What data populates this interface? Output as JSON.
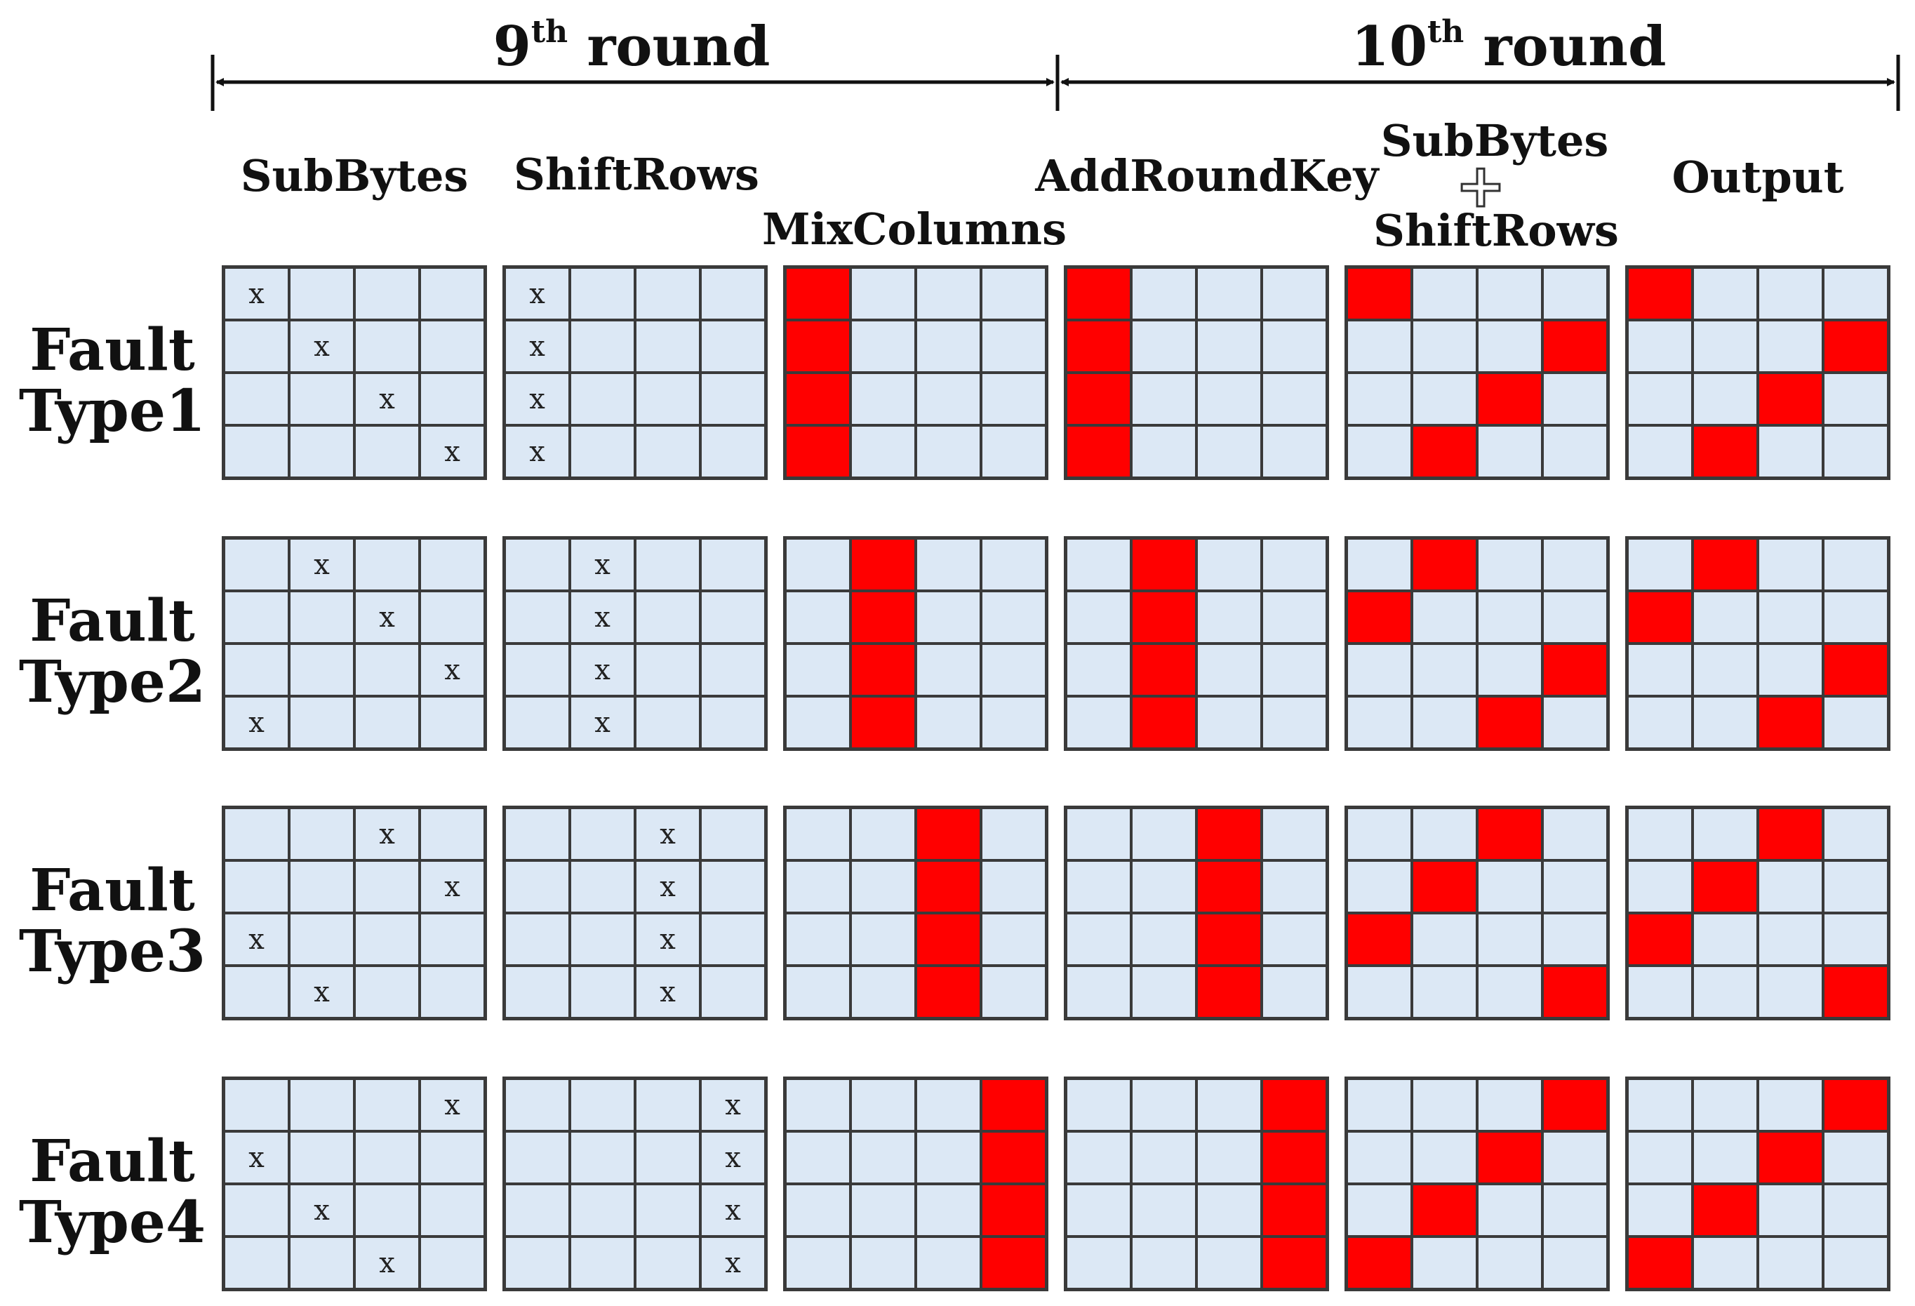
{
  "rounds": [
    {
      "ordinal": "9",
      "suffix": "th",
      "word": "round"
    },
    {
      "ordinal": "10",
      "suffix": "th",
      "word": "round"
    }
  ],
  "column_labels": {
    "subbytes": "SubBytes",
    "shiftrows": "ShiftRows",
    "mixcolumns": "MixColumns",
    "addroundkey": "AddRoundKey",
    "final_subbytes": "SubBytes",
    "final_plus": "+",
    "final_shiftrows": "ShiftRows",
    "output": "Output"
  },
  "fault_types": [
    {
      "label_top": "Fault",
      "label_bottom": "Type1",
      "subbytes_x": [
        [
          0,
          0
        ],
        [
          1,
          1
        ],
        [
          2,
          2
        ],
        [
          3,
          3
        ]
      ],
      "shiftrows_x": [
        [
          0,
          0
        ],
        [
          1,
          0
        ],
        [
          2,
          0
        ],
        [
          3,
          0
        ]
      ],
      "mixcolumns_red": [
        [
          0,
          0
        ],
        [
          1,
          0
        ],
        [
          2,
          0
        ],
        [
          3,
          0
        ]
      ],
      "addroundkey_red": [
        [
          0,
          0
        ],
        [
          1,
          0
        ],
        [
          2,
          0
        ],
        [
          3,
          0
        ]
      ],
      "final_red": [
        [
          0,
          0
        ],
        [
          1,
          3
        ],
        [
          2,
          2
        ],
        [
          3,
          1
        ]
      ],
      "output_red": [
        [
          0,
          0
        ],
        [
          1,
          3
        ],
        [
          2,
          2
        ],
        [
          3,
          1
        ]
      ]
    },
    {
      "label_top": "Fault",
      "label_bottom": "Type2",
      "subbytes_x": [
        [
          0,
          1
        ],
        [
          1,
          2
        ],
        [
          2,
          3
        ],
        [
          3,
          0
        ]
      ],
      "shiftrows_x": [
        [
          0,
          1
        ],
        [
          1,
          1
        ],
        [
          2,
          1
        ],
        [
          3,
          1
        ]
      ],
      "mixcolumns_red": [
        [
          0,
          1
        ],
        [
          1,
          1
        ],
        [
          2,
          1
        ],
        [
          3,
          1
        ]
      ],
      "addroundkey_red": [
        [
          0,
          1
        ],
        [
          1,
          1
        ],
        [
          2,
          1
        ],
        [
          3,
          1
        ]
      ],
      "final_red": [
        [
          0,
          1
        ],
        [
          1,
          0
        ],
        [
          2,
          3
        ],
        [
          3,
          2
        ]
      ],
      "output_red": [
        [
          0,
          1
        ],
        [
          1,
          0
        ],
        [
          2,
          3
        ],
        [
          3,
          2
        ]
      ]
    },
    {
      "label_top": "Fault",
      "label_bottom": "Type3",
      "subbytes_x": [
        [
          0,
          2
        ],
        [
          1,
          3
        ],
        [
          2,
          0
        ],
        [
          3,
          1
        ]
      ],
      "shiftrows_x": [
        [
          0,
          2
        ],
        [
          1,
          2
        ],
        [
          2,
          2
        ],
        [
          3,
          2
        ]
      ],
      "mixcolumns_red": [
        [
          0,
          2
        ],
        [
          1,
          2
        ],
        [
          2,
          2
        ],
        [
          3,
          2
        ]
      ],
      "addroundkey_red": [
        [
          0,
          2
        ],
        [
          1,
          2
        ],
        [
          2,
          2
        ],
        [
          3,
          2
        ]
      ],
      "final_red": [
        [
          0,
          2
        ],
        [
          1,
          1
        ],
        [
          2,
          0
        ],
        [
          3,
          3
        ]
      ],
      "output_red": [
        [
          0,
          2
        ],
        [
          1,
          1
        ],
        [
          2,
          0
        ],
        [
          3,
          3
        ]
      ]
    },
    {
      "label_top": "Fault",
      "label_bottom": "Type4",
      "subbytes_x": [
        [
          0,
          3
        ],
        [
          1,
          0
        ],
        [
          2,
          1
        ],
        [
          3,
          2
        ]
      ],
      "shiftrows_x": [
        [
          0,
          3
        ],
        [
          1,
          3
        ],
        [
          2,
          3
        ],
        [
          3,
          3
        ]
      ],
      "mixcolumns_red": [
        [
          0,
          3
        ],
        [
          1,
          3
        ],
        [
          2,
          3
        ],
        [
          3,
          3
        ]
      ],
      "addroundkey_red": [
        [
          0,
          3
        ],
        [
          1,
          3
        ],
        [
          2,
          3
        ],
        [
          3,
          3
        ]
      ],
      "final_red": [
        [
          0,
          3
        ],
        [
          1,
          2
        ],
        [
          2,
          1
        ],
        [
          3,
          0
        ]
      ],
      "output_red": [
        [
          0,
          3
        ],
        [
          1,
          2
        ],
        [
          2,
          1
        ],
        [
          3,
          0
        ]
      ]
    }
  ],
  "cell_mark": "x",
  "colors": {
    "cell_fill": "#dce8f5",
    "fault_fill": "#ff0000",
    "grid_line": "#3a3a3a"
  }
}
